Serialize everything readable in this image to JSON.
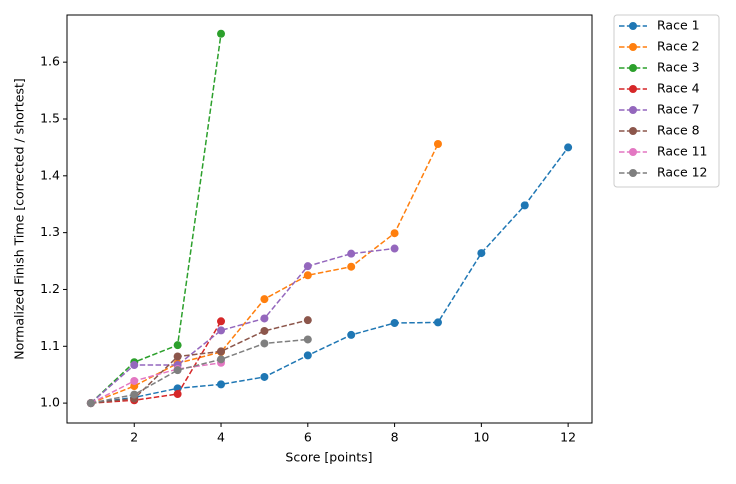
{
  "chart_data": {
    "type": "line",
    "xlabel": "Score [points]",
    "ylabel": "Normalized Finish Time [corrected / shortest]",
    "xlim": [
      0.45,
      12.55
    ],
    "ylim": [
      0.965,
      1.683
    ],
    "xticks": [
      2,
      4,
      6,
      8,
      10,
      12
    ],
    "yticks": [
      {
        "value": 1.0,
        "label": "1.0"
      },
      {
        "value": 1.1,
        "label": "1.1"
      },
      {
        "value": 1.2,
        "label": "1.2"
      },
      {
        "value": 1.3,
        "label": "1.3"
      },
      {
        "value": 1.4,
        "label": "1.4"
      },
      {
        "value": 1.5,
        "label": "1.5"
      },
      {
        "value": 1.6,
        "label": "1.6"
      }
    ],
    "legend": "outside-upper-right",
    "series": [
      {
        "name": "Race 1",
        "color": "#1f77b4",
        "x": [
          1,
          2,
          3,
          4,
          5,
          6,
          7,
          8,
          9,
          10,
          11,
          12
        ],
        "values": [
          1.0,
          1.01,
          1.026,
          1.033,
          1.046,
          1.084,
          1.12,
          1.141,
          1.142,
          1.264,
          1.348,
          1.45
        ]
      },
      {
        "name": "Race 2",
        "color": "#ff7f0e",
        "x": [
          1,
          2,
          3,
          4,
          5,
          6,
          7,
          8,
          9
        ],
        "values": [
          1.0,
          1.03,
          1.07,
          1.09,
          1.183,
          1.225,
          1.24,
          1.299,
          1.456
        ]
      },
      {
        "name": "Race 3",
        "color": "#2ca02c",
        "x": [
          1,
          2,
          3,
          4
        ],
        "values": [
          1.0,
          1.072,
          1.102,
          1.65
        ]
      },
      {
        "name": "Race 4",
        "color": "#d62728",
        "x": [
          1,
          2,
          3,
          4
        ],
        "values": [
          1.0,
          1.005,
          1.016,
          1.144
        ]
      },
      {
        "name": "Race 7",
        "color": "#9467bd",
        "x": [
          1,
          2,
          3,
          4,
          5,
          6,
          7,
          8
        ],
        "values": [
          1.0,
          1.067,
          1.067,
          1.128,
          1.149,
          1.241,
          1.263,
          1.272
        ]
      },
      {
        "name": "Race 8",
        "color": "#8c564b",
        "x": [
          1,
          2,
          3,
          4,
          5,
          6
        ],
        "values": [
          1.0,
          1.008,
          1.082,
          1.091,
          1.127,
          1.146
        ]
      },
      {
        "name": "Race 11",
        "color": "#e377c2",
        "x": [
          1,
          2,
          3,
          4
        ],
        "values": [
          1.0,
          1.039,
          1.06,
          1.071
        ]
      },
      {
        "name": "Race 12",
        "color": "#7f7f7f",
        "x": [
          1,
          2,
          3,
          4,
          5,
          6
        ],
        "values": [
          1.0,
          1.015,
          1.058,
          1.077,
          1.105,
          1.112
        ]
      }
    ]
  }
}
